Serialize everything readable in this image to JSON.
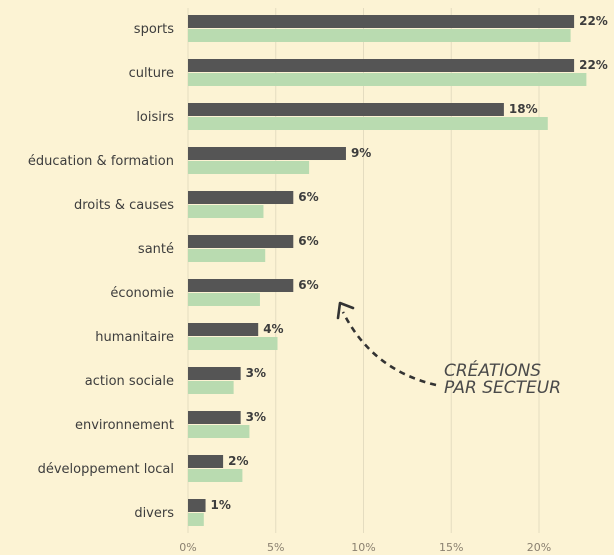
{
  "chart_data": {
    "type": "bar",
    "orientation": "horizontal",
    "categories": [
      "sports",
      "culture",
      "loisirs",
      "éducation & formation",
      "droits & causes",
      "santé",
      "économie",
      "humanitaire",
      "action sociale",
      "environnement",
      "développement local",
      "divers"
    ],
    "series": [
      {
        "values": [
          22,
          22,
          18,
          9,
          6,
          6,
          6,
          4,
          3,
          3,
          2,
          1
        ],
        "color": "#555555",
        "show_labels": true
      },
      {
        "values": [
          21.8,
          22.7,
          20.5,
          6.9,
          4.3,
          4.4,
          4.1,
          5.1,
          2.6,
          3.5,
          3.1,
          0.9
        ],
        "color": "#b9dbb0",
        "show_labels": false
      }
    ],
    "value_labels": [
      "22%",
      "22%",
      "18%",
      "9%",
      "6%",
      "6%",
      "6%",
      "4%",
      "3%",
      "3%",
      "2%",
      "1%"
    ],
    "xticks": [
      0,
      5,
      10,
      15,
      20
    ],
    "xtick_labels": [
      "0%",
      "5%",
      "10%",
      "15%",
      "20%"
    ],
    "xlim": [
      0,
      23.5
    ],
    "grid": true,
    "annotation": {
      "line1": "CRÉATIONS",
      "line2": "PAR SECTEUR"
    },
    "title": "",
    "xlabel": "",
    "ylabel": ""
  },
  "colors": {
    "background": "#fcf3d4",
    "grid": "#e4dcc0",
    "text": "#3d3d3d",
    "tick_text": "#8a8070",
    "arrow": "#333333"
  }
}
